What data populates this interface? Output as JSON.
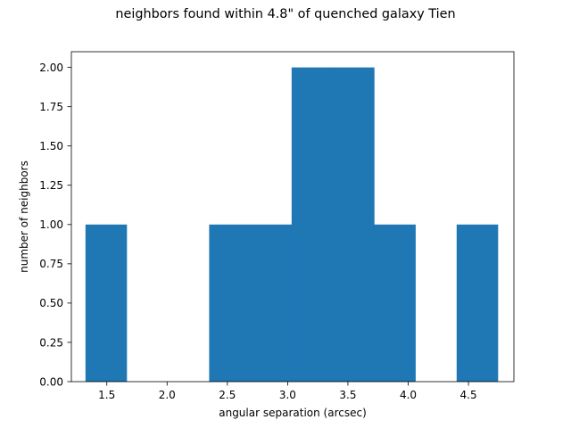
{
  "chart_data": {
    "type": "bar",
    "title": "neighbors found within 4.8\" of quenched galaxy Tien",
    "xlabel": "angular separation (arcsec)",
    "ylabel": "number of neighbors",
    "xlim": [
      1.206,
      4.877
    ],
    "ylim": [
      0,
      2.1
    ],
    "xticks": [
      "1.5",
      "2.0",
      "2.5",
      "3.0",
      "3.5",
      "4.0",
      "4.5"
    ],
    "xtick_values": [
      1.5,
      2.0,
      2.5,
      3.0,
      3.5,
      4.0,
      4.5
    ],
    "yticks": [
      "0.00",
      "0.25",
      "0.50",
      "0.75",
      "1.00",
      "1.25",
      "1.50",
      "1.75",
      "2.00"
    ],
    "ytick_values": [
      0,
      0.25,
      0.5,
      0.75,
      1.0,
      1.25,
      1.5,
      1.75,
      2.0
    ],
    "bins": [
      {
        "x0": 1.323,
        "x1": 1.665,
        "value": 1
      },
      {
        "x0": 1.665,
        "x1": 2.007,
        "value": 0
      },
      {
        "x0": 2.007,
        "x1": 2.349,
        "value": 0
      },
      {
        "x0": 2.349,
        "x1": 2.691,
        "value": 1
      },
      {
        "x0": 2.691,
        "x1": 3.033,
        "value": 1
      },
      {
        "x0": 3.033,
        "x1": 3.376,
        "value": 2
      },
      {
        "x0": 3.376,
        "x1": 3.718,
        "value": 2
      },
      {
        "x0": 3.718,
        "x1": 4.06,
        "value": 1
      },
      {
        "x0": 4.06,
        "x1": 4.402,
        "value": 0
      },
      {
        "x0": 4.402,
        "x1": 4.744,
        "value": 1
      }
    ],
    "bar_color": "#1f77b4",
    "grid": false,
    "legend": "none"
  }
}
